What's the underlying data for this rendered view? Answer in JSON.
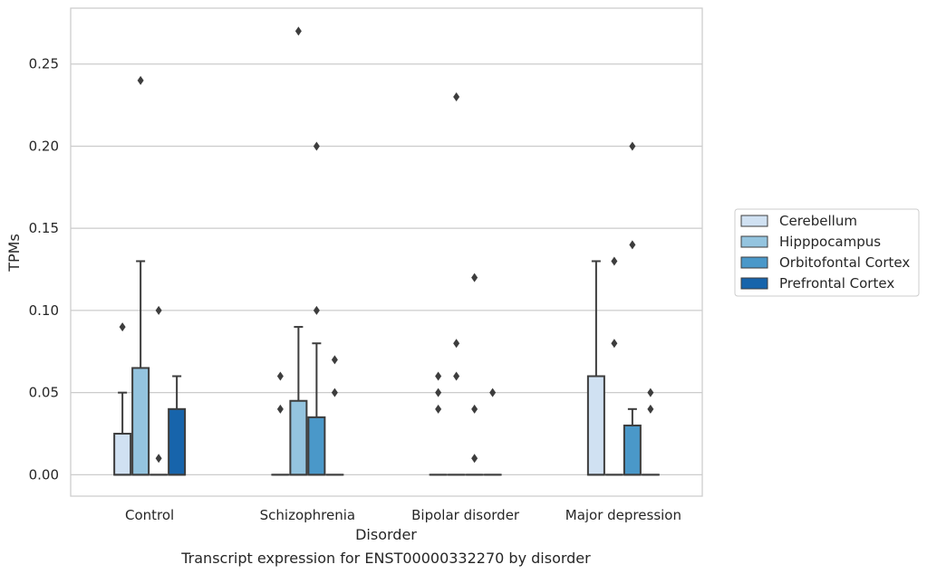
{
  "chart_data": {
    "type": "box",
    "title": "",
    "caption": "Transcript expression for ENST00000332270 by disorder",
    "xlabel": "Disorder",
    "ylabel": "TPMs",
    "ylim": [
      -0.013,
      0.284
    ],
    "yticks": [
      "0.00",
      "0.05",
      "0.10",
      "0.15",
      "0.20",
      "0.25"
    ],
    "yticks_values": [
      0.0,
      0.05,
      0.1,
      0.15,
      0.2,
      0.25
    ],
    "grid": "horizontal",
    "legend_position": "right",
    "categories": [
      "Control",
      "Schizophrenia",
      "Bipolar disorder",
      "Major depression"
    ],
    "series": [
      {
        "name": "Cerebellum",
        "color": "#d0e1f2",
        "boxes": [
          {
            "q1": 0.0,
            "median": 0.0,
            "q3": 0.025,
            "whisker_low": 0.0,
            "whisker_high": 0.05,
            "outliers": [
              0.09
            ]
          },
          {
            "q1": 0.0,
            "median": 0.0,
            "q3": 0.0,
            "whisker_low": 0.0,
            "whisker_high": 0.0,
            "outliers": [
              0.04,
              0.06
            ]
          },
          {
            "q1": 0.0,
            "median": 0.0,
            "q3": 0.0,
            "whisker_low": 0.0,
            "whisker_high": 0.0,
            "outliers": [
              0.04,
              0.05,
              0.06
            ]
          },
          {
            "q1": 0.0,
            "median": 0.0,
            "q3": 0.06,
            "whisker_low": 0.0,
            "whisker_high": 0.13,
            "outliers": []
          }
        ]
      },
      {
        "name": "Hipppocampus",
        "color": "#94c4df",
        "boxes": [
          {
            "q1": 0.0,
            "median": 0.0,
            "q3": 0.065,
            "whisker_low": 0.0,
            "whisker_high": 0.13,
            "outliers": [
              0.24
            ]
          },
          {
            "q1": 0.0,
            "median": 0.0,
            "q3": 0.045,
            "whisker_low": 0.0,
            "whisker_high": 0.09,
            "outliers": [
              0.27
            ]
          },
          {
            "q1": 0.0,
            "median": 0.0,
            "q3": 0.0,
            "whisker_low": 0.0,
            "whisker_high": 0.0,
            "outliers": [
              0.06,
              0.08,
              0.23
            ]
          },
          {
            "q1": 0.0,
            "median": 0.0,
            "q3": 0.0,
            "whisker_low": 0.0,
            "whisker_high": 0.0,
            "outliers": [
              0.08,
              0.13
            ]
          }
        ]
      },
      {
        "name": "Orbitofontal Cortex",
        "color": "#4a98c9",
        "boxes": [
          {
            "q1": 0.0,
            "median": 0.0,
            "q3": 0.0,
            "whisker_low": 0.0,
            "whisker_high": 0.0,
            "outliers": [
              0.01,
              0.1
            ]
          },
          {
            "q1": 0.0,
            "median": 0.0,
            "q3": 0.035,
            "whisker_low": 0.0,
            "whisker_high": 0.08,
            "outliers": [
              0.1,
              0.2
            ]
          },
          {
            "q1": 0.0,
            "median": 0.0,
            "q3": 0.0,
            "whisker_low": 0.0,
            "whisker_high": 0.0,
            "outliers": [
              0.01,
              0.04,
              0.12
            ]
          },
          {
            "q1": 0.0,
            "median": 0.0,
            "q3": 0.03,
            "whisker_low": 0.0,
            "whisker_high": 0.04,
            "outliers": [
              0.14,
              0.2
            ]
          }
        ]
      },
      {
        "name": "Prefrontal Cortex",
        "color": "#1764ab",
        "boxes": [
          {
            "q1": 0.0,
            "median": 0.0,
            "q3": 0.04,
            "whisker_low": 0.0,
            "whisker_high": 0.06,
            "outliers": []
          },
          {
            "q1": 0.0,
            "median": 0.0,
            "q3": 0.0,
            "whisker_low": 0.0,
            "whisker_high": 0.0,
            "outliers": [
              0.05,
              0.07
            ]
          },
          {
            "q1": 0.0,
            "median": 0.0,
            "q3": 0.0,
            "whisker_low": 0.0,
            "whisker_high": 0.0,
            "outliers": [
              0.05
            ]
          },
          {
            "q1": 0.0,
            "median": 0.0,
            "q3": 0.0,
            "whisker_low": 0.0,
            "whisker_high": 0.0,
            "outliers": [
              0.04,
              0.05
            ]
          }
        ]
      }
    ]
  }
}
